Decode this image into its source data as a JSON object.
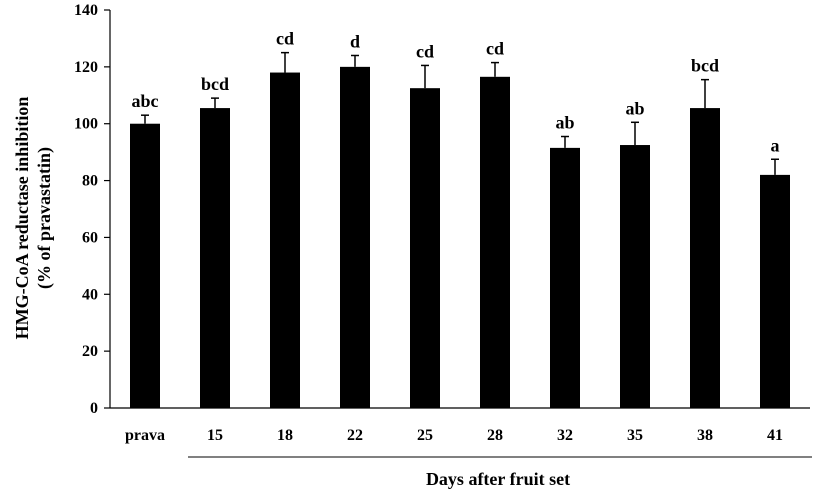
{
  "chart_data": {
    "type": "bar",
    "title": "",
    "ylabel_line1": "HMG-CoA reductase inhibition",
    "ylabel_line2": "(% of pravastatin)",
    "xlabel": "Days after fruit set",
    "categories": [
      "prava",
      "15",
      "18",
      "22",
      "25",
      "28",
      "32",
      "35",
      "38",
      "41"
    ],
    "values": [
      100,
      105.5,
      118,
      120,
      112.5,
      116.5,
      91.5,
      92.5,
      105.5,
      82
    ],
    "errors": [
      3,
      3.5,
      7,
      4,
      8,
      5,
      4,
      8,
      10,
      5.5
    ],
    "significance": [
      "abc",
      "bcd",
      "cd",
      "d",
      "cd",
      "cd",
      "ab",
      "ab",
      "bcd",
      "a"
    ],
    "ylim": [
      0,
      140
    ],
    "yticks": [
      0,
      20,
      40,
      60,
      80,
      100,
      120,
      140
    ],
    "bar_color": "#000000",
    "grid": false,
    "legend": "none"
  }
}
